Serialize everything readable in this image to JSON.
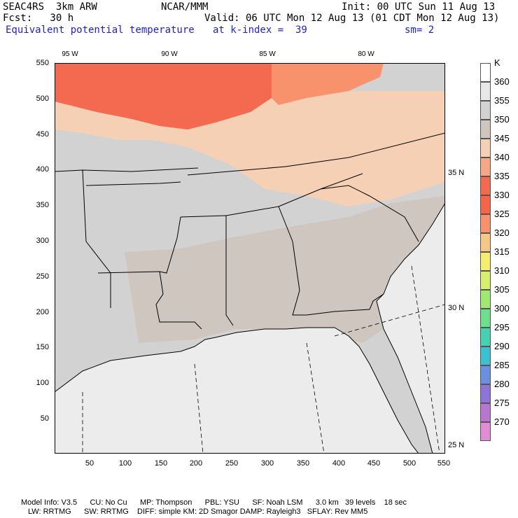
{
  "header": {
    "model": "SEAC4RS  3km ARW",
    "org": "NCAR/MMM",
    "init": "Init: 00 UTC Sun 11 Aug 13",
    "fcst": "Fcst:   30 h",
    "valid": "Valid: 06 UTC Mon 12 Aug 13 (01 CDT Mon 12 Aug 13)",
    "field": "Equivalent potential temperature",
    "level": "at k-index =  39",
    "smooth": "sm= 2"
  },
  "axes": {
    "y_ticks": [
      "550",
      "500",
      "450",
      "400",
      "350",
      "300",
      "250",
      "200",
      "150",
      "100",
      "50"
    ],
    "x_ticks": [
      "50",
      "100",
      "150",
      "200",
      "250",
      "300",
      "350",
      "400",
      "450",
      "500",
      "550"
    ],
    "lon_labels": [
      "95 W",
      "90 W",
      "85 W",
      "80 W"
    ],
    "lat_labels": [
      "35 N",
      "30 N",
      "25 N"
    ]
  },
  "legend": {
    "unit": "K",
    "levels": [
      "360",
      "355",
      "350",
      "345",
      "340",
      "335",
      "330",
      "325",
      "320",
      "315",
      "310",
      "305",
      "300",
      "295",
      "290",
      "285",
      "280",
      "275",
      "270"
    ],
    "colors": [
      "#ffffff",
      "#e8e8e8",
      "#d2d2d2",
      "#cfc6bf",
      "#f5d0b5",
      "#f5a888",
      "#f46a50",
      "#f76548",
      "#f7926c",
      "#f6c887",
      "#f4ed6d",
      "#d6f06d",
      "#9ee96f",
      "#6edf8c",
      "#46d2b1",
      "#3cc1d0",
      "#6d8fe0",
      "#8f74d8",
      "#b777d0",
      "#e28cd6"
    ]
  },
  "footer": {
    "line1": "Model Info: V3.5      CU: No Cu      MP: Thompson      PBL: YSU      SF: Noah LSM      3.0 km   39 levels    18 sec",
    "line2": "LW: RRTMG      SW: RRTMG    DIFF: simple KM: 2D Smagor DAMP: Rayleigh3   SFLAY: Rev MM5"
  }
}
